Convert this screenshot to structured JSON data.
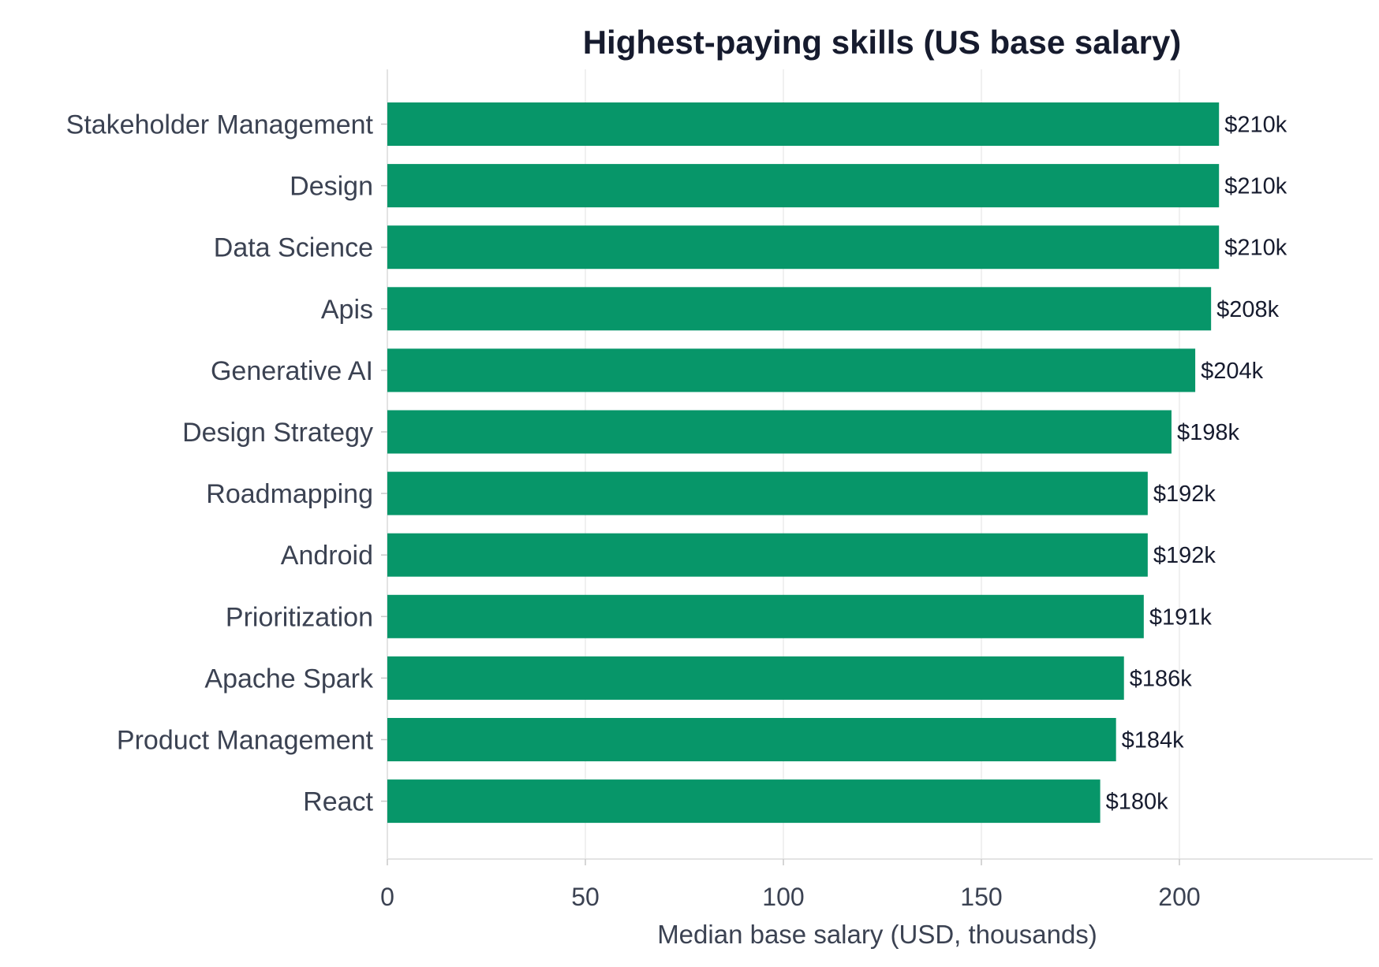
{
  "chart_data": {
    "type": "bar",
    "orientation": "horizontal",
    "title": "Highest-paying skills (US base salary)",
    "xlabel": "Median base salary (USD, thousands)",
    "ylabel": "",
    "xlim": [
      0,
      250
    ],
    "xticks": [
      0,
      50,
      100,
      150,
      200
    ],
    "xtick_labels": [
      "0",
      "50",
      "100",
      "150",
      "200"
    ],
    "grid": "vertical",
    "color": "#079669",
    "categories": [
      "Stakeholder Management",
      "Design",
      "Data Science",
      "Apis",
      "Generative AI",
      "Design Strategy",
      "Roadmapping",
      "Android",
      "Prioritization",
      "Apache Spark",
      "Product Management",
      "React"
    ],
    "values": [
      210,
      210,
      210,
      208,
      204,
      198,
      192,
      192,
      191,
      186,
      184,
      180
    ],
    "value_labels": [
      "$210k",
      "$210k",
      "$210k",
      "$208k",
      "$204k",
      "$198k",
      "$192k",
      "$192k",
      "$191k",
      "$186k",
      "$184k",
      "$180k"
    ]
  }
}
